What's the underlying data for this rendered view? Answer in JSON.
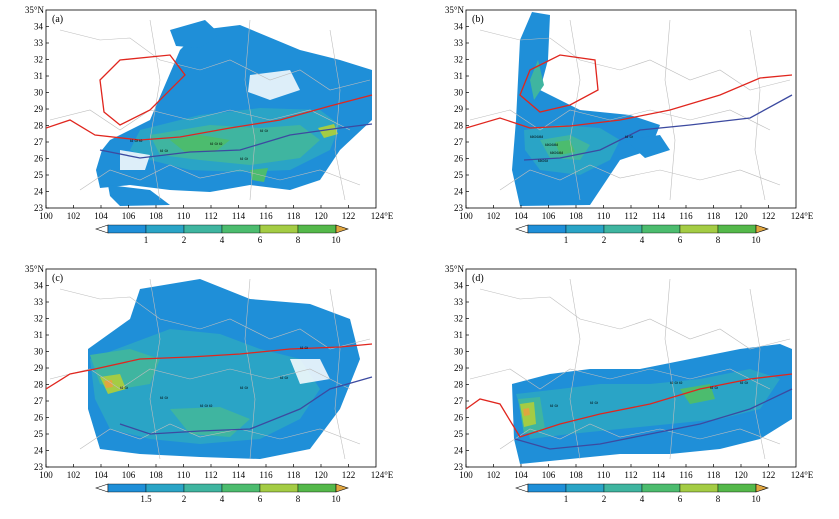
{
  "colors": {
    "c1": "#1f8fd8",
    "c2": "#2aa4c6",
    "c3": "#3fb5a0",
    "c4": "#4cbc6e",
    "c5": "#a4cc44",
    "c6": "#54b84a",
    "cmax": "#e0a640",
    "ridge_red": "#e0261e",
    "ridge_blue": "#3c4aa0",
    "boundary": "#bdbdbd"
  },
  "axes": {
    "x_ticks": [
      "100",
      "102",
      "104",
      "106",
      "108",
      "110",
      "112",
      "114",
      "116",
      "118",
      "120",
      "122"
    ],
    "x_last": "124°E",
    "y_top": "35°N",
    "y_ticks": [
      "34",
      "33",
      "32",
      "31",
      "30",
      "29",
      "28",
      "27",
      "26",
      "25",
      "24",
      "23"
    ]
  },
  "panels": [
    {
      "id": "a",
      "label": "(a)",
      "colorbar": [
        "1",
        "2",
        "4",
        "6",
        "8",
        "10"
      ]
    },
    {
      "id": "b",
      "label": "(b)",
      "colorbar": [
        "1",
        "2",
        "4",
        "6",
        "8",
        "10"
      ]
    },
    {
      "id": "c",
      "label": "(c)",
      "colorbar": [
        "1.5",
        "2",
        "4",
        "6",
        "8",
        "10"
      ]
    },
    {
      "id": "d",
      "label": "(d)",
      "colorbar": [
        "1",
        "2",
        "4",
        "6",
        "8",
        "10"
      ]
    }
  ]
}
